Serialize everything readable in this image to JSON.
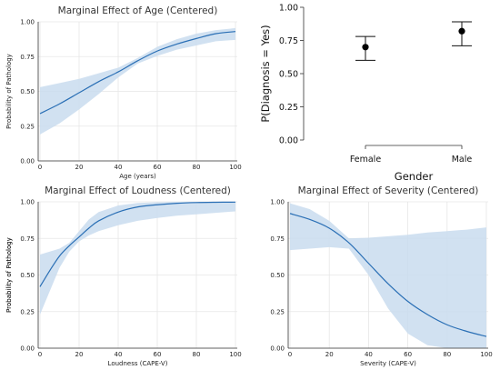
{
  "chart_data": [
    {
      "type": "line",
      "title": "Marginal Effect of Age (Centered)",
      "xlabel": "Age (years)",
      "ylabel": "Probability of Pathology",
      "xlim": [
        0,
        100
      ],
      "ylim": [
        0,
        1
      ],
      "xticks": [
        "0",
        "20",
        "40",
        "60",
        "80",
        "100"
      ],
      "yticks": [
        "0.00",
        "0.25",
        "0.50",
        "0.75",
        "1.00"
      ],
      "grid": true,
      "colors": {
        "line": "#2a6fb5",
        "band": "#c9dcee"
      },
      "x": [
        0,
        10,
        20,
        30,
        40,
        50,
        60,
        70,
        80,
        90,
        100
      ],
      "series": [
        {
          "values": [
            0.34,
            0.41,
            0.49,
            0.57,
            0.64,
            0.72,
            0.79,
            0.84,
            0.88,
            0.915,
            0.93
          ],
          "lower": [
            0.19,
            0.27,
            0.37,
            0.48,
            0.6,
            0.7,
            0.755,
            0.8,
            0.83,
            0.86,
            0.87
          ],
          "upper": [
            0.53,
            0.56,
            0.59,
            0.63,
            0.67,
            0.74,
            0.82,
            0.875,
            0.915,
            0.94,
            0.955
          ]
        }
      ]
    },
    {
      "type": "scatter",
      "xlabel": "Gender",
      "ylabel": "P(Diagnosis = Yes)",
      "categories": [
        "Female",
        "Male"
      ],
      "ylim": [
        0,
        1
      ],
      "yticks": [
        "0.00",
        "0.25",
        "0.50",
        "0.75",
        "1.00"
      ],
      "grid": false,
      "colors": {
        "point": "#000000"
      },
      "series": [
        {
          "values": [
            0.7,
            0.82
          ],
          "lower": [
            0.6,
            0.71
          ],
          "upper": [
            0.78,
            0.89
          ]
        }
      ]
    },
    {
      "type": "line",
      "title": "Marginal Effect of Loudness (Centered)",
      "xlabel": "Loudness (CAPE-V)",
      "ylabel": "Probability of Pathology",
      "xlim": [
        0,
        100
      ],
      "ylim": [
        0,
        1
      ],
      "xticks": [
        "0",
        "20",
        "40",
        "60",
        "80",
        "100"
      ],
      "yticks": [
        "0.00",
        "0.25",
        "0.50",
        "0.75",
        "1.00"
      ],
      "grid": true,
      "colors": {
        "line": "#2a6fb5",
        "band": "#c9dcee"
      },
      "x": [
        0,
        5,
        10,
        15,
        20,
        25,
        30,
        40,
        50,
        60,
        70,
        80,
        90,
        100
      ],
      "series": [
        {
          "values": [
            0.42,
            0.53,
            0.63,
            0.7,
            0.76,
            0.82,
            0.87,
            0.93,
            0.965,
            0.98,
            0.99,
            0.995,
            0.997,
            0.998
          ],
          "lower": [
            0.23,
            0.39,
            0.55,
            0.66,
            0.73,
            0.77,
            0.8,
            0.84,
            0.87,
            0.89,
            0.905,
            0.915,
            0.925,
            0.935
          ],
          "upper": [
            0.64,
            0.66,
            0.68,
            0.72,
            0.8,
            0.88,
            0.93,
            0.975,
            0.992,
            0.997,
            0.999,
            1.0,
            1.0,
            1.0
          ]
        }
      ]
    },
    {
      "type": "line",
      "title": "Marginal Effect of Severity (Centered)",
      "xlabel": "Severity (CAPE-V)",
      "ylabel": "Probability of Pathology",
      "xlim": [
        0,
        100
      ],
      "ylim": [
        0,
        1
      ],
      "xticks": [
        "0",
        "20",
        "40",
        "60",
        "80",
        "100"
      ],
      "yticks": [
        "0.00",
        "0.25",
        "0.50",
        "0.75",
        "1.00"
      ],
      "grid": true,
      "colors": {
        "line": "#2a6fb5",
        "band": "#c9dcee"
      },
      "x": [
        0,
        10,
        20,
        30,
        40,
        50,
        60,
        70,
        80,
        90,
        100
      ],
      "series": [
        {
          "values": [
            0.92,
            0.88,
            0.82,
            0.72,
            0.58,
            0.44,
            0.32,
            0.23,
            0.16,
            0.115,
            0.08
          ],
          "lower": [
            0.67,
            0.68,
            0.69,
            0.68,
            0.5,
            0.27,
            0.1,
            0.02,
            0.0,
            0.0,
            0.0
          ],
          "upper": [
            0.99,
            0.95,
            0.87,
            0.75,
            0.755,
            0.765,
            0.775,
            0.79,
            0.8,
            0.81,
            0.825
          ]
        }
      ]
    }
  ]
}
